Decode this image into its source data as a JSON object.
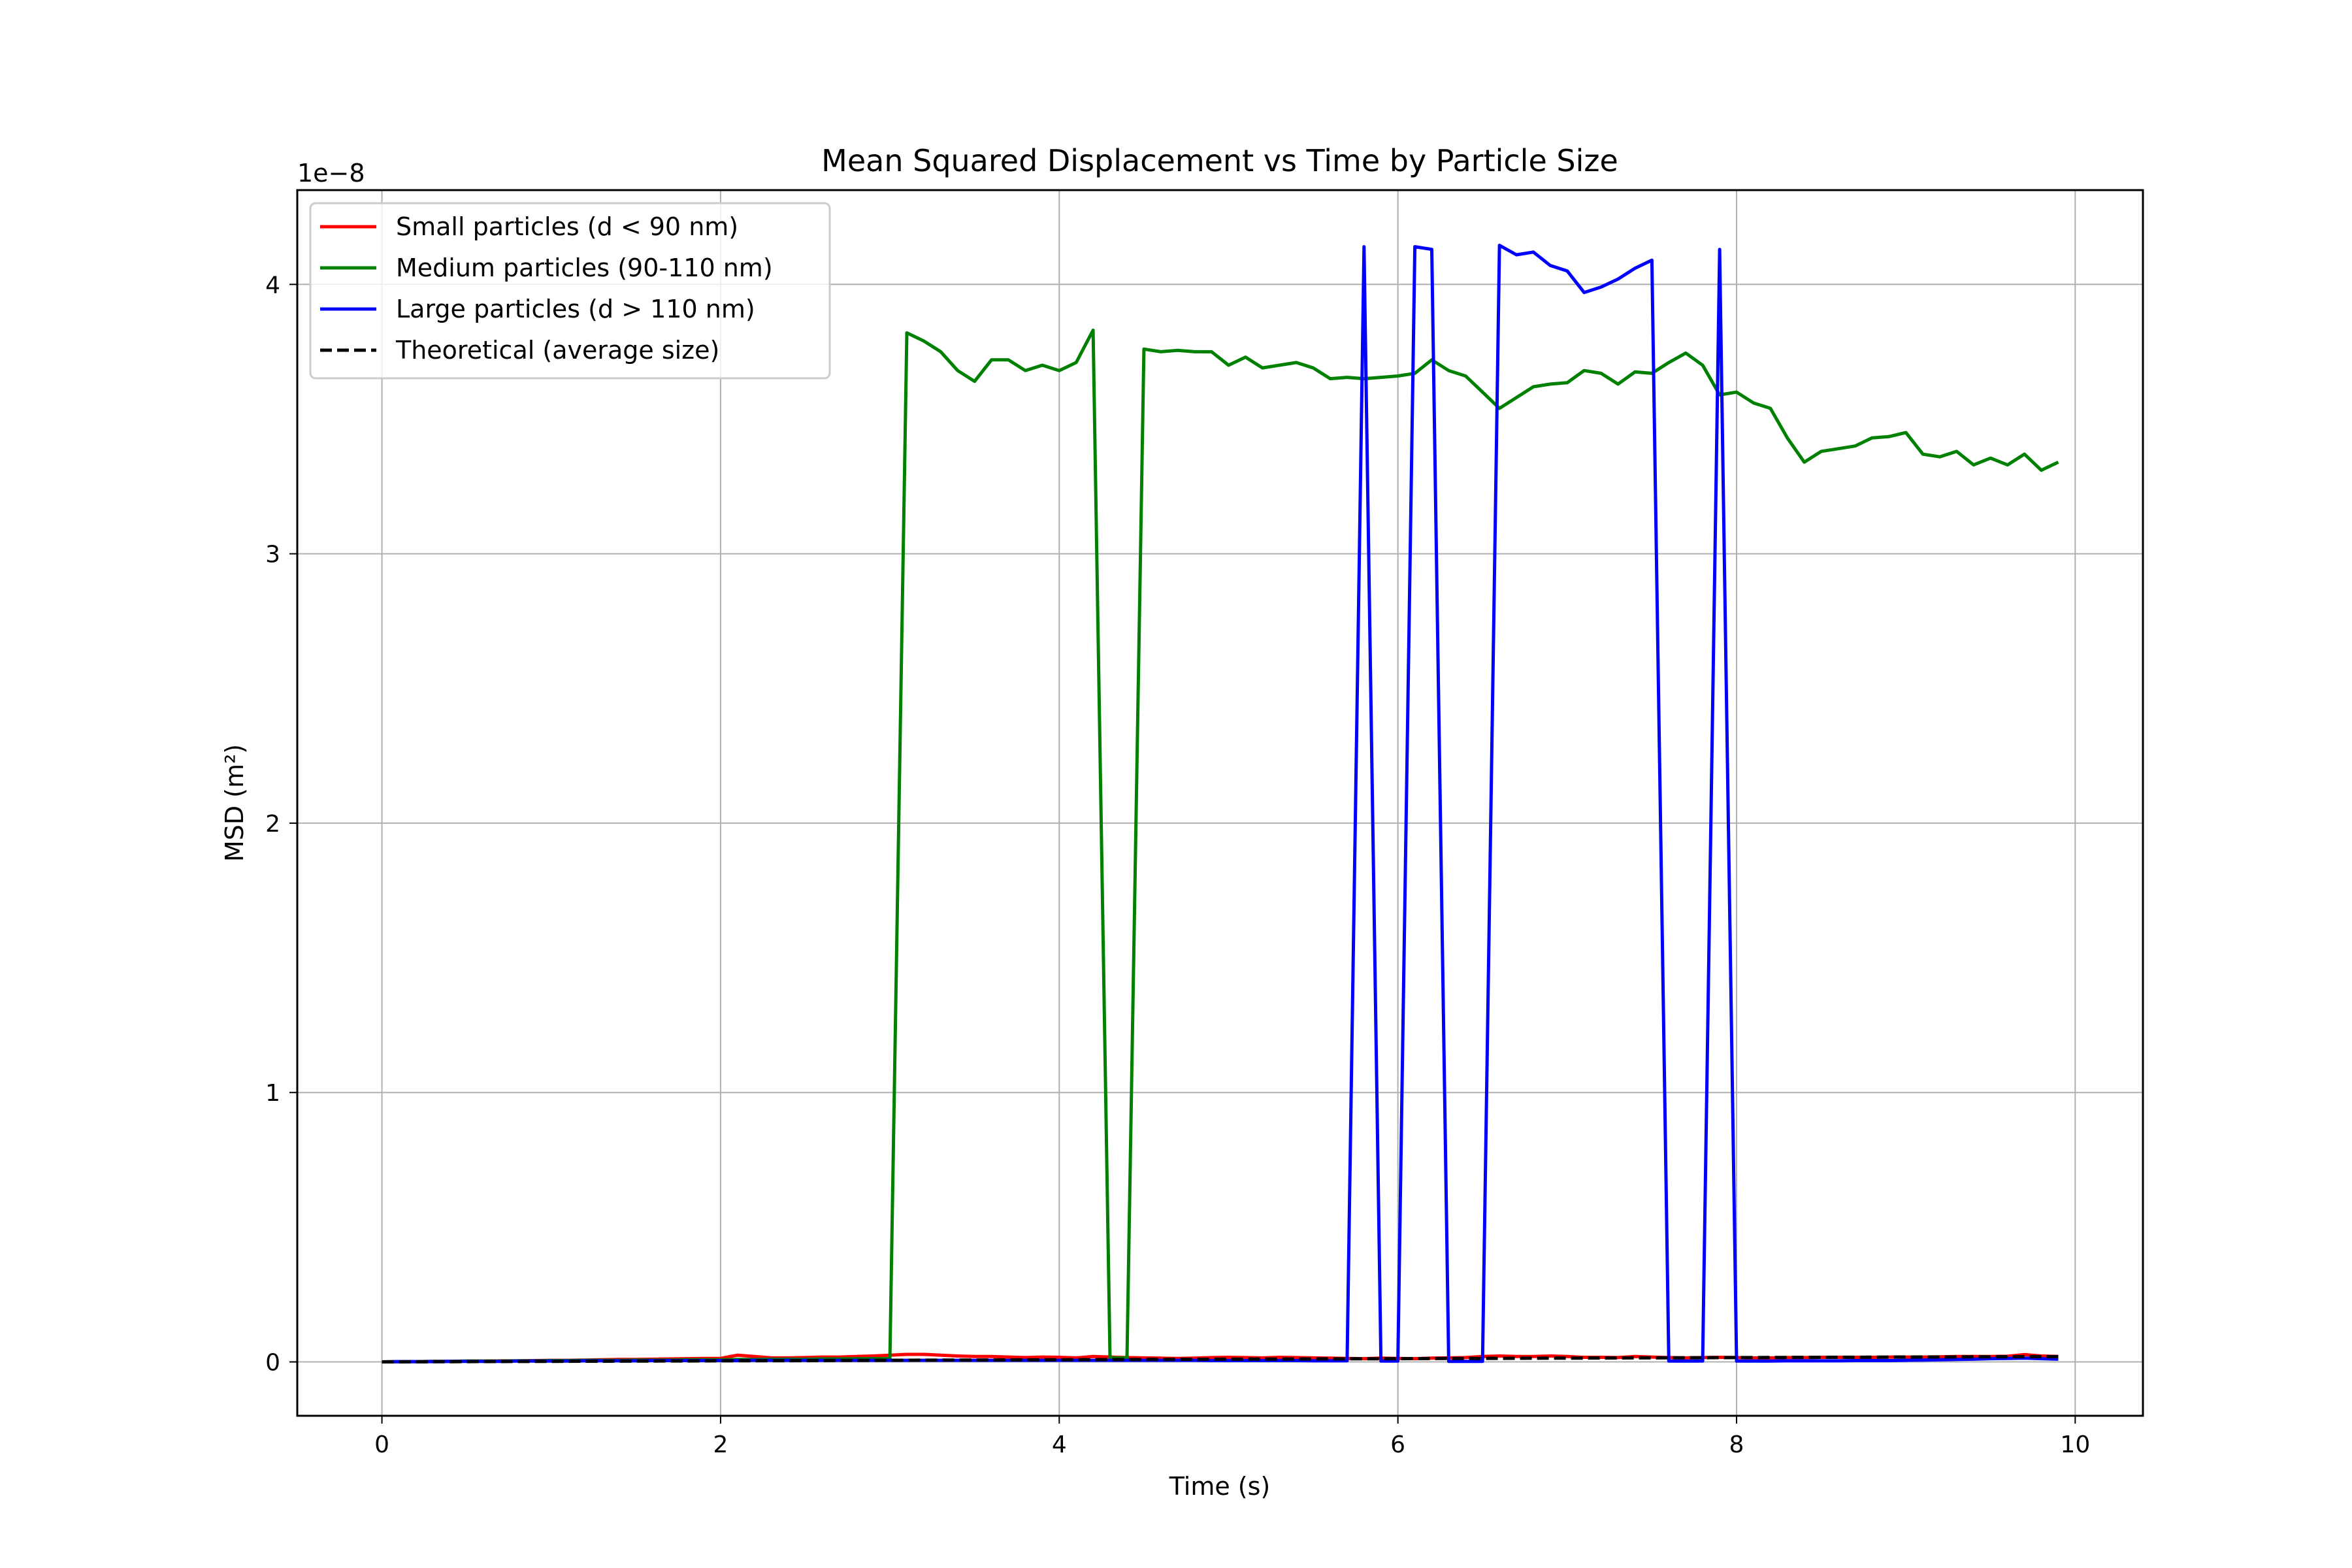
{
  "chart_data": {
    "type": "line",
    "title": "Mean Squared Displacement vs Time by Particle Size",
    "xlabel": "Time (s)",
    "ylabel": "MSD (m²)",
    "y_offset_label": "1e−8",
    "xlim": [
      -0.5,
      10.4
    ],
    "ylim": [
      -0.2,
      4.35
    ],
    "x_ticks": [
      0,
      2,
      4,
      6,
      8,
      10
    ],
    "x_tick_labels": [
      "0",
      "2",
      "4",
      "6",
      "8",
      "10"
    ],
    "y_ticks": [
      0,
      1,
      2,
      3,
      4
    ],
    "y_tick_labels": [
      "0",
      "1",
      "2",
      "3",
      "4"
    ],
    "grid": true,
    "legend_position": "top-left",
    "x": [
      0.0,
      0.1,
      0.2,
      0.3,
      0.4,
      0.5,
      0.6,
      0.7,
      0.8,
      0.9,
      1.0,
      1.1,
      1.2,
      1.3,
      1.4,
      1.5,
      1.6,
      1.7,
      1.8,
      1.9,
      2.0,
      2.1,
      2.2,
      2.3,
      2.4,
      2.5,
      2.6,
      2.7,
      2.8,
      2.9,
      3.0,
      3.1,
      3.2,
      3.3,
      3.4,
      3.5,
      3.6,
      3.7,
      3.8,
      3.9,
      4.0,
      4.1,
      4.2,
      4.3,
      4.4,
      4.5,
      4.6,
      4.7,
      4.8,
      4.9,
      5.0,
      5.1,
      5.2,
      5.3,
      5.4,
      5.5,
      5.6,
      5.7,
      5.8,
      5.9,
      6.0,
      6.1,
      6.2,
      6.3,
      6.4,
      6.5,
      6.6,
      6.7,
      6.8,
      6.9,
      7.0,
      7.1,
      7.2,
      7.3,
      7.4,
      7.5,
      7.6,
      7.7,
      7.8,
      7.9,
      8.0,
      8.1,
      8.2,
      8.3,
      8.4,
      8.5,
      8.6,
      8.7,
      8.8,
      8.9,
      9.0,
      9.1,
      9.2,
      9.3,
      9.4,
      9.5,
      9.6,
      9.7,
      9.8,
      9.9
    ],
    "series": [
      {
        "name": "Small particles (d < 90 nm)",
        "color": "#ff0000",
        "style": "solid",
        "values": [
          0,
          0.001,
          0.001,
          0.002,
          0.002,
          0.003,
          0.003,
          0.004,
          0.004,
          0.005,
          0.006,
          0.006,
          0.007,
          0.008,
          0.009,
          0.009,
          0.01,
          0.011,
          0.012,
          0.013,
          0.013,
          0.025,
          0.02,
          0.015,
          0.015,
          0.016,
          0.018,
          0.018,
          0.02,
          0.022,
          0.025,
          0.028,
          0.028,
          0.025,
          0.022,
          0.02,
          0.02,
          0.018,
          0.016,
          0.018,
          0.017,
          0.015,
          0.02,
          0.018,
          0.016,
          0.015,
          0.014,
          0.013,
          0.014,
          0.016,
          0.017,
          0.016,
          0.015,
          0.017,
          0.016,
          0.015,
          0.014,
          0.013,
          0.012,
          0.014,
          0.013,
          0.012,
          0.014,
          0.015,
          0.016,
          0.02,
          0.022,
          0.02,
          0.02,
          0.022,
          0.02,
          0.017,
          0.017,
          0.016,
          0.02,
          0.018,
          0.016,
          0.015,
          0.016,
          0.017,
          0.016,
          0.015,
          0.015,
          0.016,
          0.016,
          0.017,
          0.017,
          0.017,
          0.017,
          0.018,
          0.018,
          0.018,
          0.019,
          0.02,
          0.02,
          0.02,
          0.021,
          0.027,
          0.022,
          0.02
        ]
      },
      {
        "name": "Medium particles (90-110 nm)",
        "color": "#008000",
        "style": "solid",
        "values": [
          0,
          0.001,
          0.001,
          0.002,
          0.002,
          0.003,
          0.003,
          0.003,
          0.004,
          0.004,
          0.005,
          0.005,
          0.006,
          0.006,
          0.006,
          0.007,
          0.007,
          0.007,
          0.008,
          0.008,
          0.008,
          0.009,
          0.009,
          0.01,
          0.01,
          0.01,
          0.011,
          0.011,
          0.012,
          0.012,
          0.012,
          3.82,
          3.79,
          3.75,
          3.68,
          3.64,
          3.72,
          3.72,
          3.68,
          3.7,
          3.68,
          3.71,
          3.83,
          0.015,
          0.015,
          3.76,
          3.75,
          3.755,
          3.75,
          3.75,
          3.7,
          3.73,
          3.69,
          3.7,
          3.71,
          3.69,
          3.65,
          3.655,
          3.65,
          3.655,
          3.66,
          3.67,
          3.72,
          3.68,
          3.66,
          3.6,
          3.54,
          3.58,
          3.62,
          3.63,
          3.635,
          3.68,
          3.67,
          3.63,
          3.675,
          3.67,
          3.71,
          3.745,
          3.7,
          3.59,
          3.6,
          3.56,
          3.54,
          3.43,
          3.34,
          3.38,
          3.39,
          3.4,
          3.43,
          3.435,
          3.45,
          3.37,
          3.36,
          3.38,
          3.33,
          3.355,
          3.33,
          3.37,
          3.31,
          3.34
        ]
      },
      {
        "name": "Large particles (d > 110 nm)",
        "color": "#0000ff",
        "style": "solid",
        "values": [
          0,
          0.001,
          0.001,
          0.001,
          0.002,
          0.002,
          0.002,
          0.002,
          0.003,
          0.003,
          0.003,
          0.003,
          0.004,
          0.004,
          0.004,
          0.004,
          0.005,
          0.005,
          0.005,
          0.005,
          0.005,
          0.005,
          0.006,
          0.006,
          0.006,
          0.006,
          0.006,
          0.006,
          0.006,
          0.006,
          0.006,
          0.006,
          0.006,
          0.006,
          0.006,
          0.006,
          0.006,
          0.006,
          0.006,
          0.006,
          0.006,
          0.006,
          0.006,
          0.006,
          0.006,
          0.006,
          0.006,
          0.006,
          0.006,
          0.005,
          0.005,
          0.005,
          0.005,
          0.005,
          0.005,
          0.004,
          0.004,
          0.004,
          4.14,
          0.003,
          0.003,
          4.14,
          4.13,
          0.002,
          0.002,
          0.002,
          4.145,
          4.11,
          4.12,
          4.07,
          4.05,
          3.97,
          3.99,
          4.02,
          4.06,
          4.09,
          0.003,
          0.003,
          0.003,
          4.13,
          0.003,
          0.003,
          0.003,
          0.004,
          0.004,
          0.004,
          0.004,
          0.005,
          0.005,
          0.005,
          0.006,
          0.007,
          0.008,
          0.009,
          0.01,
          0.012,
          0.013,
          0.014,
          0.012,
          0.01
        ]
      },
      {
        "name": "Theoretical (average size)",
        "color": "#000000",
        "style": "dashed",
        "values": [
          0,
          0.0002,
          0.0004,
          0.0006,
          0.0008,
          0.001,
          0.0012,
          0.0014,
          0.0016,
          0.0018,
          0.002,
          0.0022,
          0.0024,
          0.0026,
          0.0028,
          0.003,
          0.0032,
          0.0034,
          0.0036,
          0.0038,
          0.004,
          0.0042,
          0.0044,
          0.0046,
          0.0048,
          0.005,
          0.0052,
          0.0054,
          0.0056,
          0.0058,
          0.006,
          0.0062,
          0.0064,
          0.0066,
          0.0068,
          0.007,
          0.0072,
          0.0074,
          0.0076,
          0.0078,
          0.008,
          0.0082,
          0.0084,
          0.0086,
          0.0088,
          0.009,
          0.0092,
          0.0094,
          0.0096,
          0.0098,
          0.01,
          0.0102,
          0.0104,
          0.0106,
          0.0108,
          0.011,
          0.0112,
          0.0114,
          0.0116,
          0.0118,
          0.012,
          0.0122,
          0.0124,
          0.0126,
          0.0128,
          0.013,
          0.0132,
          0.0134,
          0.0136,
          0.0138,
          0.014,
          0.0142,
          0.0144,
          0.0146,
          0.0148,
          0.015,
          0.0152,
          0.0154,
          0.0156,
          0.0158,
          0.016,
          0.0162,
          0.0164,
          0.0166,
          0.0168,
          0.017,
          0.0172,
          0.0174,
          0.0176,
          0.0178,
          0.018,
          0.0182,
          0.0184,
          0.0186,
          0.0188,
          0.019,
          0.0192,
          0.0194,
          0.0196,
          0.0198
        ]
      }
    ]
  }
}
